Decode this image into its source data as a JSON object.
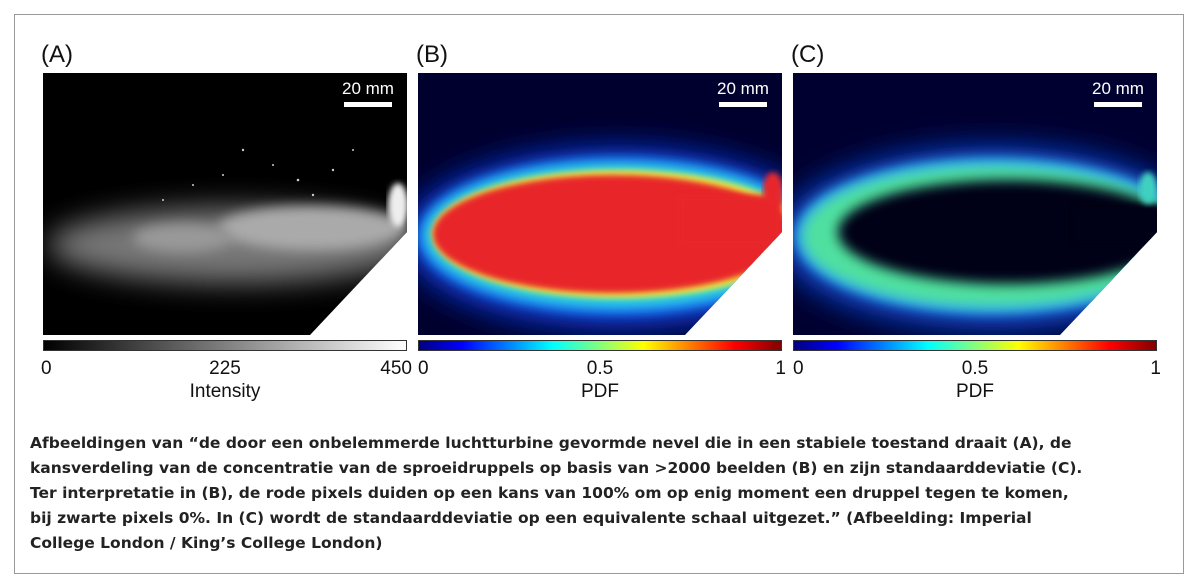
{
  "panels": [
    {
      "label": "(A)",
      "scale_bar": "20 mm",
      "colorbar": {
        "ticks": [
          0,
          225,
          450
        ],
        "label": "Intensity"
      }
    },
    {
      "label": "(B)",
      "scale_bar": "20 mm",
      "colorbar": {
        "ticks": [
          0,
          0.5,
          1
        ],
        "label": "PDF"
      }
    },
    {
      "label": "(C)",
      "scale_bar": "20 mm",
      "colorbar": {
        "ticks": [
          0,
          0.5,
          1
        ],
        "label": "PDF"
      }
    }
  ],
  "caption": {
    "lines": [
      "Afbeeldingen van “de door een onbelemmerde luchtturbine gevormde nevel die in een stabiele toestand draait (A), de",
      "kansverdeling van de concentratie van de sproeidruppels op basis van >2000 beelden (B) en zijn standaarddeviatie (C).",
      "Ter interpretatie in (B), de rode pixels duiden op een kans van 100% om op enig moment een druppel tegen te komen,",
      "bij zwarte pixels 0%. In (C) wordt de standaarddeviatie op een equivalente schaal uitgezet.” (Afbeelding: Imperial",
      "College London / King’s College London)"
    ]
  }
}
